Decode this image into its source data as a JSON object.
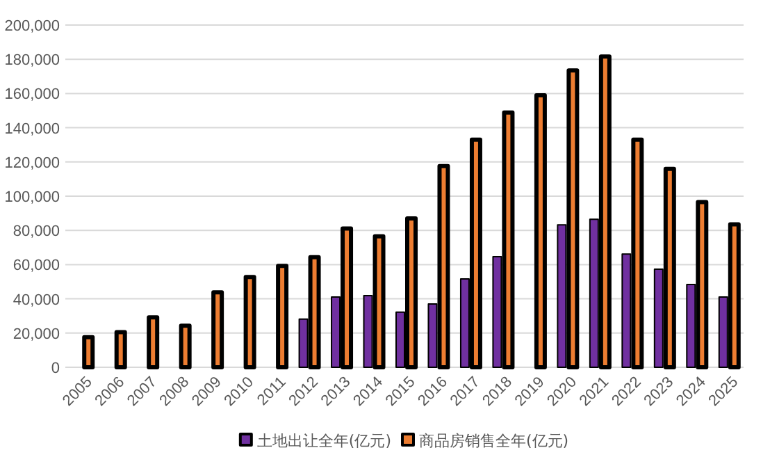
{
  "chart_data": {
    "type": "bar",
    "categories": [
      "2005",
      "2006",
      "2007",
      "2008",
      "2009",
      "2010",
      "2011",
      "2012",
      "2013",
      "2014",
      "2015",
      "2016",
      "2017",
      "2018",
      "2019",
      "2020",
      "2021",
      "2022",
      "2023",
      "2024",
      "2025"
    ],
    "series": [
      {
        "name": "土地出让全年(亿元)",
        "color": "#7030a0",
        "values": [
          null,
          null,
          null,
          null,
          null,
          null,
          null,
          28100,
          41100,
          41900,
          32200,
          37000,
          51600,
          64600,
          null,
          83200,
          86500,
          66200,
          57300,
          48400,
          41100
        ]
      },
      {
        "name": "商品房销售全年(亿元)",
        "color": "#ed7d31",
        "values": [
          17600,
          20500,
          29200,
          24300,
          43800,
          52700,
          59200,
          64300,
          81100,
          76500,
          87000,
          117600,
          133000,
          148900,
          158900,
          173500,
          181600,
          133000,
          116000,
          96500,
          83500
        ]
      }
    ],
    "ylim": [
      0,
      200000
    ],
    "yticks": [
      {
        "value": 0,
        "label": "0"
      },
      {
        "value": 20000,
        "label": "20,000"
      },
      {
        "value": 40000,
        "label": "40,000"
      },
      {
        "value": 60000,
        "label": "60,000"
      },
      {
        "value": 80000,
        "label": "80,000"
      },
      {
        "value": 100000,
        "label": "100,000"
      },
      {
        "value": 120000,
        "label": "120,000"
      },
      {
        "value": 140000,
        "label": "140,000"
      },
      {
        "value": 160000,
        "label": "160,000"
      },
      {
        "value": 180000,
        "label": "180,000"
      },
      {
        "value": 200000,
        "label": "200,000"
      }
    ],
    "grid": "y",
    "legend": "bottom"
  }
}
